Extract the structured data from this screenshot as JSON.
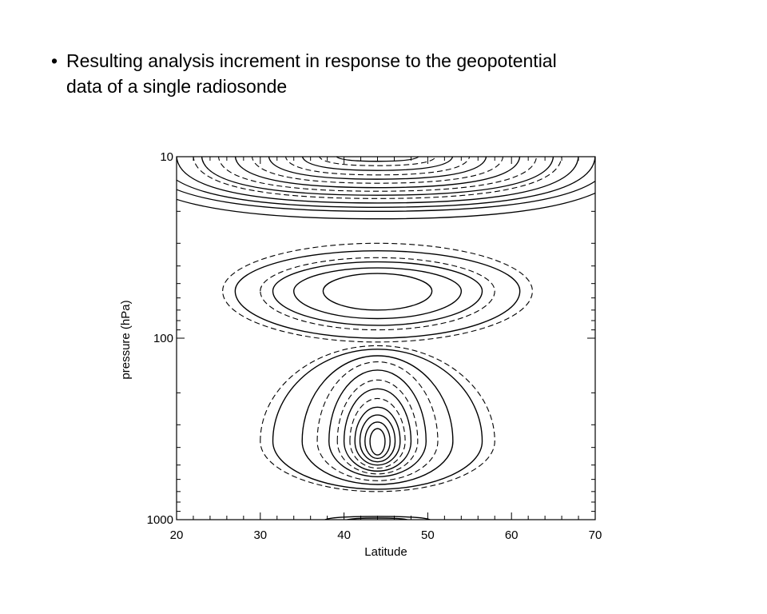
{
  "slide": {
    "bullet": "•",
    "lines": [
      "Resulting analysis increment in response to the geopotential",
      "data of a single radiosonde"
    ]
  },
  "chart_data": {
    "type": "contour",
    "title": "",
    "xlabel": "Latitude",
    "ylabel": "pressure (hPa)",
    "xlim": [
      20,
      70
    ],
    "ylim": [
      10,
      1000
    ],
    "yscale": "log",
    "y_inverted": false,
    "x_ticks": [
      20,
      30,
      40,
      50,
      60,
      70
    ],
    "x_tick_labels": [
      "20",
      "30",
      "40",
      "50",
      "60",
      "70"
    ],
    "y_ticks": [
      10,
      100,
      1000
    ],
    "y_tick_labels": [
      "10",
      "100",
      "1000"
    ],
    "x_minor_step": 2,
    "y_minor_ticks": true,
    "grid": false,
    "legend": "none",
    "line_styles": {
      "positive": "solid",
      "negative": "dashed"
    },
    "features": [
      {
        "label": "upper-lobe",
        "center_lat": 44,
        "center_p": 10,
        "half_width_lat": 23,
        "contours": [
          {
            "half_width_lat": 30,
            "depth_p": 22,
            "style": "solid"
          },
          {
            "half_width_lat": 28,
            "depth_p": 20,
            "style": "solid"
          },
          {
            "half_width_lat": 26,
            "depth_p": 19,
            "style": "solid"
          },
          {
            "half_width_lat": 24,
            "depth_p": 18,
            "style": "solid"
          },
          {
            "half_width_lat": 22,
            "depth_p": 17,
            "style": "dashed"
          },
          {
            "half_width_lat": 21,
            "depth_p": 16.3,
            "style": "solid"
          },
          {
            "half_width_lat": 19,
            "depth_p": 15.5,
            "style": "dashed"
          },
          {
            "half_width_lat": 17,
            "depth_p": 14.8,
            "style": "solid"
          },
          {
            "half_width_lat": 15,
            "depth_p": 14,
            "style": "dashed"
          },
          {
            "half_width_lat": 13,
            "depth_p": 13.3,
            "style": "solid"
          },
          {
            "half_width_lat": 11,
            "depth_p": 12.6,
            "style": "dashed"
          },
          {
            "half_width_lat": 9,
            "depth_p": 11.9,
            "style": "solid"
          },
          {
            "half_width_lat": 7,
            "depth_p": 11.2,
            "style": "dashed"
          },
          {
            "half_width_lat": 5,
            "depth_p": 10.6,
            "style": "solid"
          }
        ]
      },
      {
        "label": "middle-lobe",
        "center_lat": 44,
        "center_p": 55,
        "contours": [
          {
            "half_width_lat": 18.5,
            "half_height_p": [
              30,
              105
            ],
            "style": "dashed"
          },
          {
            "half_width_lat": 17,
            "half_height_p": [
              33,
              100
            ],
            "style": "solid"
          },
          {
            "half_width_lat": 14,
            "half_height_p": [
              36,
              90
            ],
            "style": "dashed"
          },
          {
            "half_width_lat": 12.5,
            "half_height_p": [
              38,
              85
            ],
            "style": "solid"
          },
          {
            "half_width_lat": 10,
            "half_height_p": [
              41,
              78
            ],
            "style": "solid"
          },
          {
            "half_width_lat": 6.5,
            "half_height_p": [
              44,
              70
            ],
            "style": "solid"
          }
        ]
      },
      {
        "label": "lower-lobe",
        "center_lat": 44,
        "center_p": 370,
        "contours": [
          {
            "half_width_lat": 14,
            "half_height_p": [
              110,
              700
            ],
            "style": "dashed"
          },
          {
            "half_width_lat": 12.5,
            "half_height_p": [
              115,
              680
            ],
            "style": "solid"
          },
          {
            "half_width_lat": 9,
            "half_height_p": [
              125,
              640
            ],
            "style": "solid"
          },
          {
            "half_width_lat": 7.2,
            "half_height_p": [
              135,
              610
            ],
            "style": "dashed"
          },
          {
            "half_width_lat": 5.8,
            "half_height_p": [
              150,
              580
            ],
            "style": "solid"
          },
          {
            "half_width_lat": 4.8,
            "half_height_p": [
              170,
              560
            ],
            "style": "dashed"
          },
          {
            "half_width_lat": 4,
            "half_height_p": [
              190,
              540
            ],
            "style": "solid"
          },
          {
            "half_width_lat": 3.3,
            "half_height_p": [
              215,
              520
            ],
            "style": "dashed"
          },
          {
            "half_width_lat": 2.7,
            "half_height_p": [
              240,
              500
            ],
            "style": "solid"
          },
          {
            "half_width_lat": 2.1,
            "half_height_p": [
              265,
              480
            ],
            "style": "solid"
          },
          {
            "half_width_lat": 1.5,
            "half_height_p": [
              290,
              460
            ],
            "style": "solid"
          },
          {
            "half_width_lat": 0.9,
            "half_height_p": [
              315,
              440
            ],
            "style": "solid"
          }
        ]
      },
      {
        "label": "surface-lobe",
        "center_lat": 44,
        "center_p": 1000,
        "contours": [
          {
            "half_width_lat": 6.5,
            "depth_p": 960,
            "style": "solid"
          },
          {
            "half_width_lat": 4,
            "depth_p": 980,
            "style": "solid"
          }
        ]
      }
    ]
  }
}
